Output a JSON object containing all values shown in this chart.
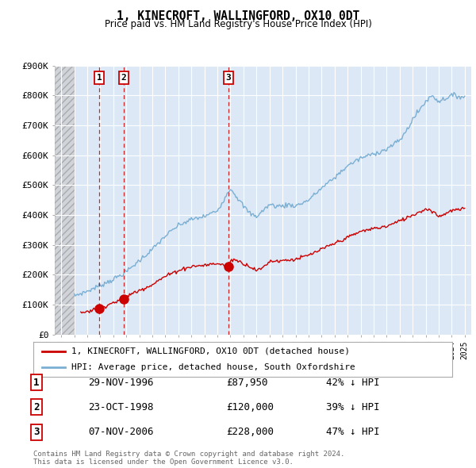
{
  "title": "1, KINECROFT, WALLINGFORD, OX10 0DT",
  "subtitle": "Price paid vs. HM Land Registry's House Price Index (HPI)",
  "legend_label_red": "1, KINECROFT, WALLINGFORD, OX10 0DT (detached house)",
  "legend_label_blue": "HPI: Average price, detached house, South Oxfordshire",
  "transactions": [
    {
      "num": 1,
      "date": "29-NOV-1996",
      "year": 1996.92,
      "price": 87950,
      "pct": "42% ↓ HPI"
    },
    {
      "num": 2,
      "date": "23-OCT-1998",
      "year": 1998.81,
      "price": 120000,
      "pct": "39% ↓ HPI"
    },
    {
      "num": 3,
      "date": "07-NOV-2006",
      "year": 2006.85,
      "price": 228000,
      "pct": "47% ↓ HPI"
    }
  ],
  "footer": "Contains HM Land Registry data © Crown copyright and database right 2024.\nThis data is licensed under the Open Government Licence v3.0.",
  "red_color": "#cc0000",
  "blue_color": "#7aafd4",
  "background_color": "#ffffff",
  "plot_bg_color": "#dce8f5",
  "grid_color": "#ffffff",
  "ylim": [
    0,
    900000
  ],
  "yticks": [
    0,
    100000,
    200000,
    300000,
    400000,
    500000,
    600000,
    700000,
    800000,
    900000
  ],
  "xlim_start": 1993.5,
  "xlim_end": 2025.5,
  "hpi_anchors": {
    "1995": 130000,
    "1996": 145000,
    "1997": 165000,
    "1998": 185000,
    "1999": 210000,
    "2000": 248000,
    "2001": 285000,
    "2002": 330000,
    "2003": 365000,
    "2004": 385000,
    "2005": 395000,
    "2006": 415000,
    "2007.0": 490000,
    "2007.5": 460000,
    "2008": 430000,
    "2008.5": 405000,
    "2009": 395000,
    "2009.5": 415000,
    "2010": 435000,
    "2010.5": 430000,
    "2011": 430000,
    "2011.5": 435000,
    "2012": 430000,
    "2013": 450000,
    "2014": 490000,
    "2015": 525000,
    "2016": 565000,
    "2017": 590000,
    "2018": 605000,
    "2019": 620000,
    "2020": 650000,
    "2020.5": 680000,
    "2021": 720000,
    "2022": 780000,
    "2022.5": 800000,
    "2023": 780000,
    "2023.5": 790000,
    "2024": 800000,
    "2025": 795000
  },
  "red_anchors": {
    "1995.5": 73000,
    "1996.0": 78000,
    "1996.92": 87950,
    "1997": 92000,
    "1997.5": 98000,
    "1998": 107000,
    "1998.81": 120000,
    "1999": 128000,
    "2000": 148000,
    "2001": 168000,
    "2002": 195000,
    "2003": 215000,
    "2004": 228000,
    "2005": 232000,
    "2006": 238000,
    "2006.85": 228000,
    "2007": 245000,
    "2007.3": 253000,
    "2007.5": 248000,
    "2008": 238000,
    "2008.5": 228000,
    "2009": 215000,
    "2009.3": 218000,
    "2009.5": 225000,
    "2010": 245000,
    "2011": 248000,
    "2012": 252000,
    "2013": 265000,
    "2014": 285000,
    "2015": 305000,
    "2016": 325000,
    "2017": 345000,
    "2018": 355000,
    "2019": 362000,
    "2020": 380000,
    "2021": 400000,
    "2022": 420000,
    "2022.5": 415000,
    "2023": 395000,
    "2023.5": 405000,
    "2024": 415000,
    "2025": 420000
  }
}
